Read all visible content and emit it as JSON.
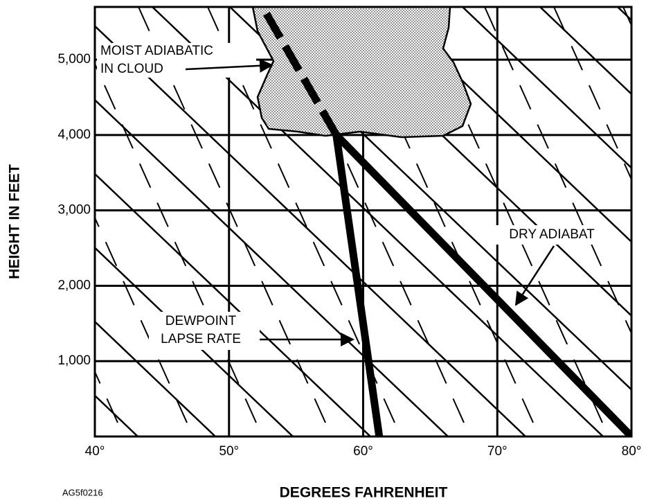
{
  "x_axis": {
    "title": "DEGREES FAHRENHEIT",
    "lim": [
      40,
      80
    ],
    "ticks": [
      {
        "value": 40,
        "label": "40°"
      },
      {
        "value": 50,
        "label": "50°"
      },
      {
        "value": 60,
        "label": "60°"
      },
      {
        "value": 70,
        "label": "70°"
      },
      {
        "value": 80,
        "label": "80°"
      }
    ]
  },
  "y_axis": {
    "title": "HEIGHT IN FEET",
    "lim": [
      0,
      5700
    ],
    "ticks": [
      {
        "value": 1000,
        "label": "1,000"
      },
      {
        "value": 2000,
        "label": "2,000"
      },
      {
        "value": 3000,
        "label": "3,000"
      },
      {
        "value": 4000,
        "label": "4,000"
      },
      {
        "value": 5000,
        "label": "5,000"
      }
    ]
  },
  "lines": [
    {
      "x": [
        61.2,
        58
      ],
      "y": [
        0,
        4000
      ],
      "dashed": false
    },
    {
      "x": [
        80,
        58
      ],
      "y": [
        0,
        4000
      ],
      "dashed": false
    },
    {
      "x": [
        58,
        52.5
      ],
      "y": [
        4000,
        5700
      ],
      "dashed": true
    }
  ],
  "annotations": {
    "moist": [
      "MOIST ADIABATIC",
      "IN CLOUD"
    ],
    "dewpoint": [
      "DEWPOINT",
      "LAPSE RATE"
    ],
    "dry": "DRY ADIABAT"
  },
  "code": "AG5f0216"
}
